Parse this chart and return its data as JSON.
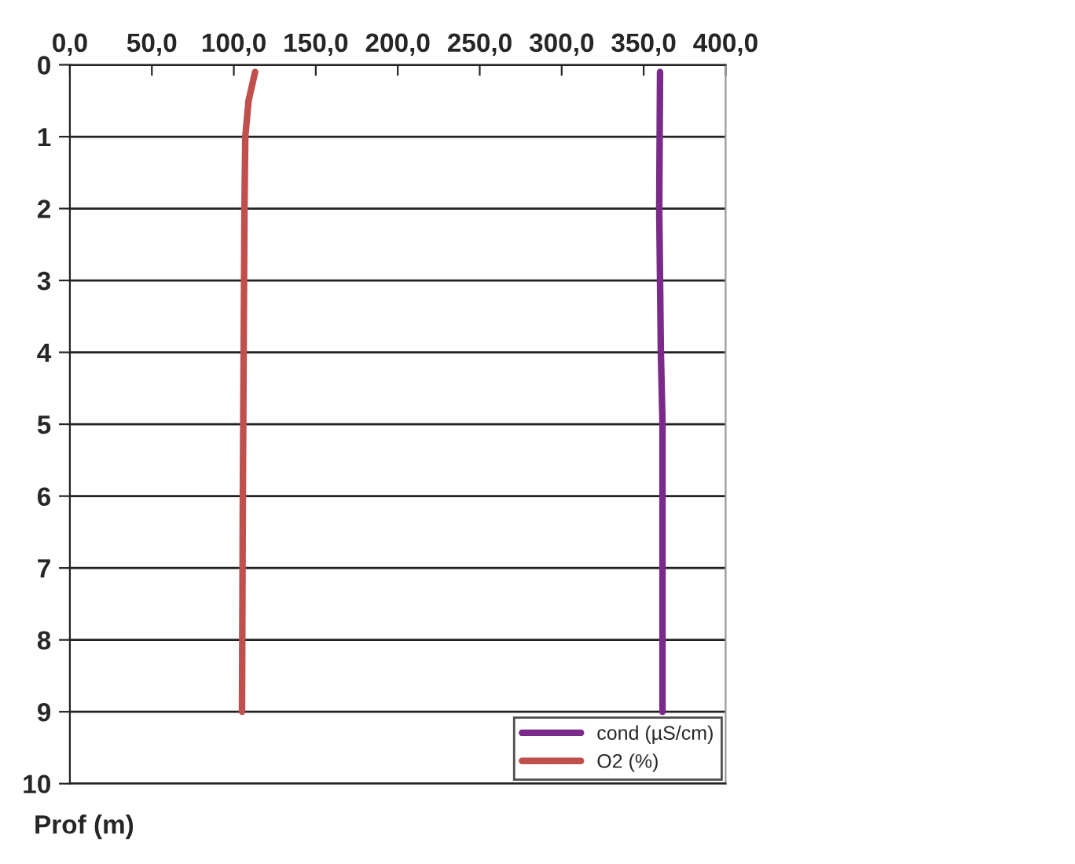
{
  "chart_data": {
    "type": "line",
    "ylabel": "Prof (m)",
    "xlim": [
      0,
      400
    ],
    "xticks": [
      {
        "value": 0,
        "label": "0,0"
      },
      {
        "value": 50,
        "label": "50,0"
      },
      {
        "value": 100,
        "label": "100,0"
      },
      {
        "value": 150,
        "label": "150,0"
      },
      {
        "value": 200,
        "label": "200,0"
      },
      {
        "value": 250,
        "label": "250,0"
      },
      {
        "value": 300,
        "label": "300,0"
      },
      {
        "value": 350,
        "label": "350,0"
      },
      {
        "value": 400,
        "label": "400,0"
      }
    ],
    "ylim": [
      10,
      0
    ],
    "yticks": [
      0,
      1,
      2,
      3,
      4,
      5,
      6,
      7,
      8,
      9,
      10
    ],
    "grid": "y",
    "legend": "bottom right",
    "marker": "none",
    "line_style": "solid",
    "series": [
      {
        "name": "cond (µS/cm)",
        "color": "#7b2a8a",
        "x": [
          360,
          359.5,
          360.5,
          361.5,
          361.5
        ],
        "values": [
          0.1,
          2,
          4,
          5,
          9
        ]
      },
      {
        "name": "O2 (%)",
        "color": "#c0504d",
        "x": [
          113,
          109,
          107,
          106.5,
          106,
          105.5,
          105
        ],
        "values": [
          0.1,
          0.5,
          1,
          2,
          4,
          6,
          9
        ]
      }
    ]
  }
}
